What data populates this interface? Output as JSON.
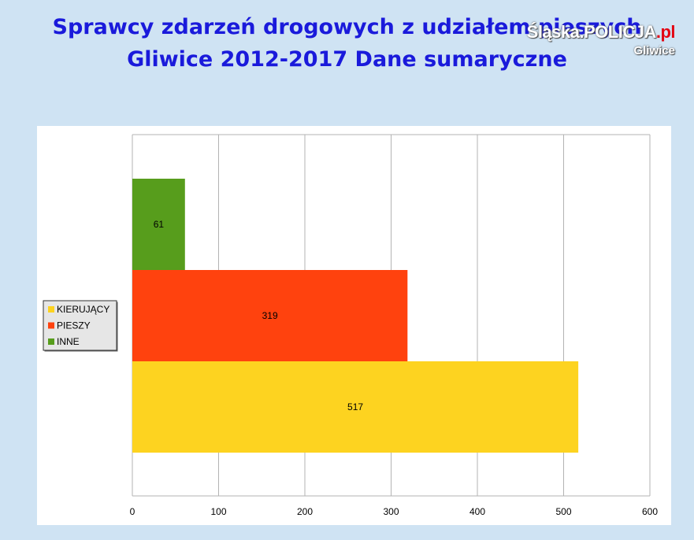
{
  "title_lines": [
    "Sprawcy zdarzeń drogowych z udziałem pieszych",
    "Gliwice 2012-2017 Dane sumaryczne"
  ],
  "logo": {
    "brand": "Śląska.POLICJA",
    "tld": ".pl",
    "city": "Gliwice"
  },
  "chart_data": {
    "type": "bar",
    "orientation": "horizontal",
    "categories": [
      "KIERUJĄCY",
      "PIESZY",
      "INNE"
    ],
    "values": [
      517,
      319,
      61
    ],
    "colors": [
      "#fdd320",
      "#ff420e",
      "#579d1c"
    ],
    "xlim": [
      0,
      600
    ],
    "x_ticks": [
      0,
      100,
      200,
      300,
      400,
      500,
      600
    ],
    "grid": true,
    "legend": {
      "placement": "left",
      "entries": [
        "KIERUJĄCY",
        "PIESZY",
        "INNE"
      ]
    }
  }
}
